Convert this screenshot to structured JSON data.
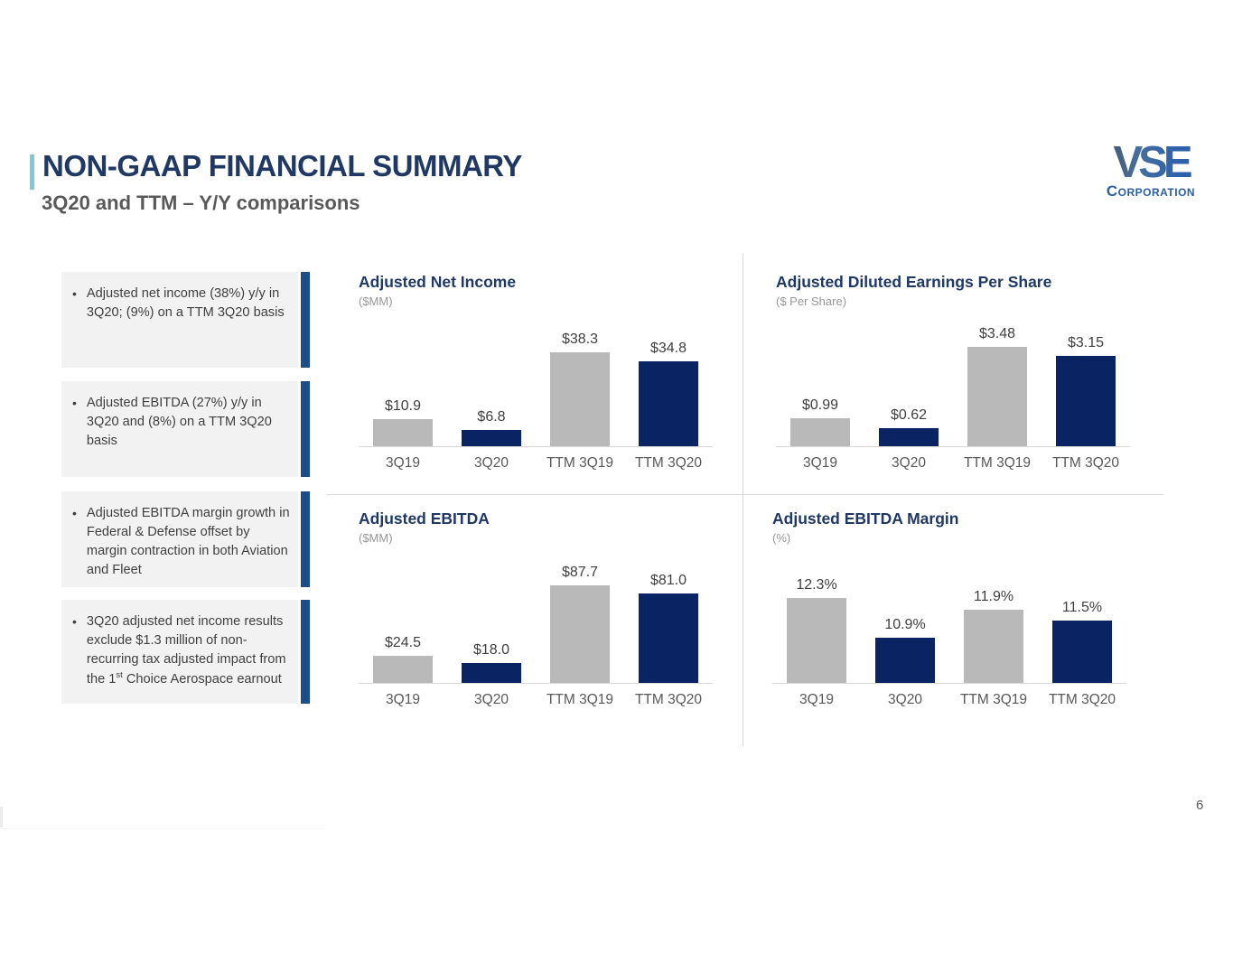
{
  "slide": {
    "title": "NON-GAAP FINANCIAL SUMMARY",
    "subtitle": "3Q20 and TTM – Y/Y comparisons",
    "page_number": "6",
    "logo": {
      "name": "VSE",
      "subname": "Corporation"
    }
  },
  "bullets": [
    {
      "text": "Adjusted net income (38%) y/y in 3Q20; (9%) on a TTM 3Q20 basis"
    },
    {
      "text": "Adjusted EBITDA (27%) y/y in 3Q20 and (8%) on a TTM 3Q20 basis"
    },
    {
      "text": "Adjusted EBITDA margin growth in Federal & Defense offset by margin contraction in both Aviation and Fleet"
    },
    {
      "text_before_sup": "3Q20 adjusted net income results exclude $1.3 million of non-recurring tax adjusted impact from the 1",
      "sup": "st",
      "text_after_sup": " Choice Aerospace earnout"
    }
  ],
  "colors": {
    "title_navy": "#1f3864",
    "subtitle_gray": "#595959",
    "teal_accent": "#7fcad4",
    "box_accent_blue": "#1d4e86",
    "box_background": "#f2f2f2",
    "bar_navy": "#0a2463",
    "bar_gray": "#b9b9b9",
    "divider_gray": "#d9d9d9",
    "logo_blue": "#2d5f9d"
  },
  "chart_data": [
    {
      "type": "bar",
      "title": "Adjusted Net Income",
      "unit_label": "($MM)",
      "categories": [
        "3Q19",
        "3Q20",
        "TTM 3Q19",
        "TTM 3Q20"
      ],
      "values": [
        10.9,
        6.8,
        38.3,
        34.8
      ],
      "value_labels": [
        "$10.9",
        "$6.8",
        "$38.3",
        "$34.8"
      ],
      "bar_colors": [
        "gray",
        "navy",
        "gray",
        "navy"
      ],
      "ylim": [
        0,
        48
      ],
      "grid": false,
      "legend": "none"
    },
    {
      "type": "bar",
      "title": "Adjusted Diluted Earnings Per Share",
      "unit_label": "($ Per Share)",
      "categories": [
        "3Q19",
        "3Q20",
        "TTM 3Q19",
        "TTM 3Q20"
      ],
      "values": [
        0.99,
        0.62,
        3.48,
        3.15
      ],
      "value_labels": [
        "$0.99",
        "$0.62",
        "$3.48",
        "$3.15"
      ],
      "bar_colors": [
        "gray",
        "navy",
        "gray",
        "navy"
      ],
      "ylim": [
        0,
        4.1
      ],
      "grid": false,
      "legend": "none"
    },
    {
      "type": "bar",
      "title": "Adjusted EBITDA",
      "unit_label": "($MM)",
      "categories": [
        "3Q19",
        "3Q20",
        "TTM 3Q19",
        "TTM 3Q20"
      ],
      "values": [
        24.5,
        18.0,
        87.7,
        81.0
      ],
      "value_labels": [
        "$24.5",
        "$18.0",
        "$87.7",
        "$81.0"
      ],
      "bar_colors": [
        "gray",
        "navy",
        "gray",
        "navy"
      ],
      "ylim": [
        0,
        106
      ],
      "grid": false,
      "legend": "none"
    },
    {
      "type": "bar",
      "title": "Adjusted EBITDA Margin",
      "unit_label": "(%)",
      "categories": [
        "3Q19",
        "3Q20",
        "TTM 3Q19",
        "TTM 3Q20"
      ],
      "values": [
        12.3,
        10.9,
        11.9,
        11.5
      ],
      "value_labels": [
        "12.3%",
        "10.9%",
        "11.9%",
        "11.5%"
      ],
      "bar_colors": [
        "gray",
        "navy",
        "gray",
        "navy"
      ],
      "ylim": [
        9.3,
        13.45
      ],
      "grid": false,
      "legend": "none"
    }
  ]
}
